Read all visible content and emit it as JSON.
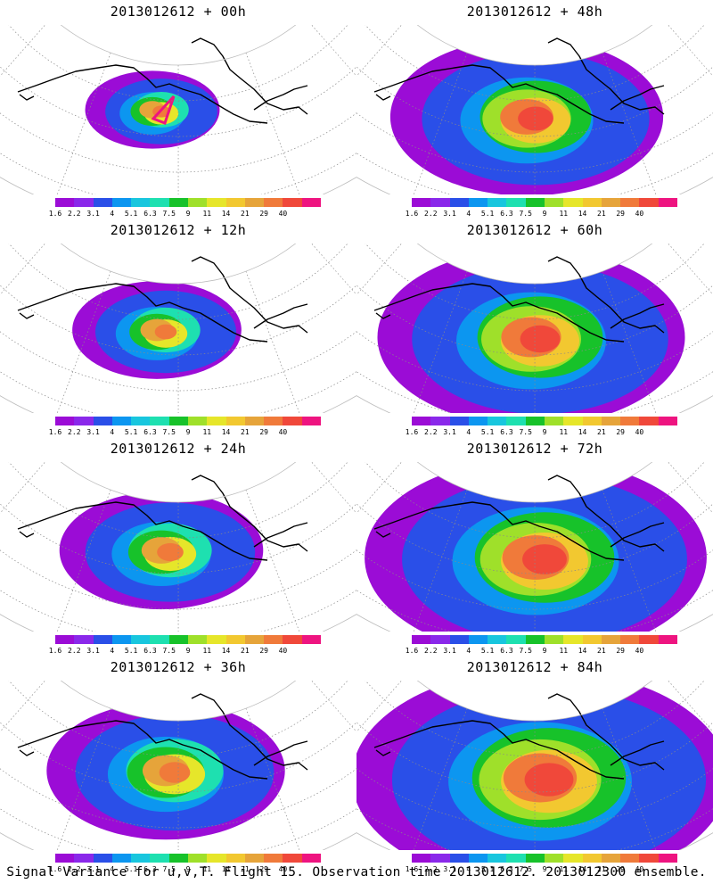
{
  "caption": "Signal Variance for u,v,T. Flight 15. Observation time 2013012612. 2013012300 ensemble.",
  "colorbar": {
    "colors": [
      "#9b0cd6",
      "#8a28ea",
      "#2a4fe8",
      "#0c96f0",
      "#18c6de",
      "#1ee0b0",
      "#17c22a",
      "#9fe02a",
      "#e6e62a",
      "#f2c830",
      "#e6a43a",
      "#f07a3a",
      "#f0483a",
      "#ee1480"
    ],
    "labels": [
      "1.6",
      "2.2",
      "3.1",
      "4",
      "5.1",
      "6.3",
      "7.5",
      "9",
      "11",
      "14",
      "21",
      "29",
      "40"
    ]
  },
  "panels": [
    {
      "title": "2013012612 + 00h",
      "level": 0
    },
    {
      "title": "2013012612 + 48h",
      "level": 4
    },
    {
      "title": "2013012612 + 12h",
      "level": 1
    },
    {
      "title": "2013012612 + 60h",
      "level": 5
    },
    {
      "title": "2013012612 + 24h",
      "level": 2
    },
    {
      "title": "2013012612 + 72h",
      "level": 6
    },
    {
      "title": "2013012612 + 36h",
      "level": 3
    },
    {
      "title": "2013012612 + 84h",
      "level": 7
    }
  ]
}
